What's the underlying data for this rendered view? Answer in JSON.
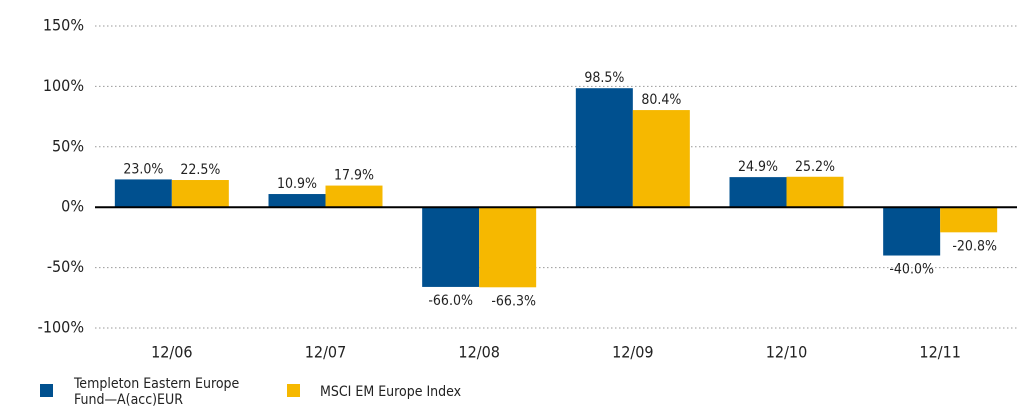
{
  "chart_data": {
    "type": "bar",
    "categories": [
      "12/06",
      "12/07",
      "12/08",
      "12/09",
      "12/10",
      "12/11"
    ],
    "series": [
      {
        "name": "Templeton Eastern Europe Fund—A(acc)EUR",
        "color": "#00508f",
        "values": [
          23.0,
          10.9,
          -66.0,
          98.5,
          24.9,
          -40.0
        ],
        "value_labels": [
          "23.0%",
          "10.9%",
          "-66.0%",
          "98.5%",
          "24.9%",
          "-40.0%"
        ]
      },
      {
        "name": "MSCI EM Europe Index",
        "color": "#f6b800",
        "values": [
          22.5,
          17.9,
          -66.3,
          80.4,
          25.2,
          -20.8
        ],
        "value_labels": [
          "22.5%",
          "17.9%",
          "-66.3%",
          "80.4%",
          "25.2%",
          "-20.8%"
        ]
      }
    ],
    "ylim": [
      -100,
      150
    ],
    "yticks": [
      {
        "value": -100,
        "label": "-100%"
      },
      {
        "value": -50,
        "label": "-50%"
      },
      {
        "value": 0,
        "label": "0%"
      },
      {
        "value": 50,
        "label": "50%"
      },
      {
        "value": 100,
        "label": "100%"
      },
      {
        "value": 150,
        "label": "150%"
      }
    ],
    "grid": true
  }
}
